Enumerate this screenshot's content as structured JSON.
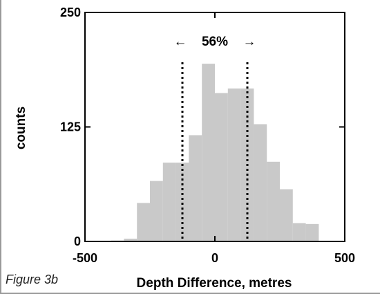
{
  "figure_label": "Figure 3b",
  "chart_data": {
    "type": "bar",
    "xlabel": "Depth Difference, metres",
    "ylabel": "counts",
    "xlim": [
      -500,
      500
    ],
    "ylim": [
      0,
      250
    ],
    "x_ticks": [
      -500,
      0,
      500
    ],
    "y_ticks": [
      0,
      125,
      250
    ],
    "bin_width": 50,
    "bins": [
      {
        "x0": -400,
        "x1": -350,
        "count": 1
      },
      {
        "x0": -350,
        "x1": -300,
        "count": 3
      },
      {
        "x0": -300,
        "x1": -250,
        "count": 42
      },
      {
        "x0": -250,
        "x1": -200,
        "count": 66
      },
      {
        "x0": -200,
        "x1": -150,
        "count": 86
      },
      {
        "x0": -150,
        "x1": -100,
        "count": 86
      },
      {
        "x0": -100,
        "x1": -50,
        "count": 116
      },
      {
        "x0": -50,
        "x1": 0,
        "count": 194
      },
      {
        "x0": 0,
        "x1": 50,
        "count": 162
      },
      {
        "x0": 50,
        "x1": 100,
        "count": 167
      },
      {
        "x0": 100,
        "x1": 150,
        "count": 167
      },
      {
        "x0": 150,
        "x1": 200,
        "count": 128
      },
      {
        "x0": 200,
        "x1": 250,
        "count": 87
      },
      {
        "x0": 250,
        "x1": 300,
        "count": 57
      },
      {
        "x0": 300,
        "x1": 350,
        "count": 20
      },
      {
        "x0": 350,
        "x1": 400,
        "count": 19
      }
    ],
    "reference_lines": [
      -125,
      125
    ],
    "annotation": {
      "text": "56%",
      "left_arrow": "←",
      "right_arrow": "→"
    },
    "bar_color": "#c9c9c9",
    "grid": false
  }
}
